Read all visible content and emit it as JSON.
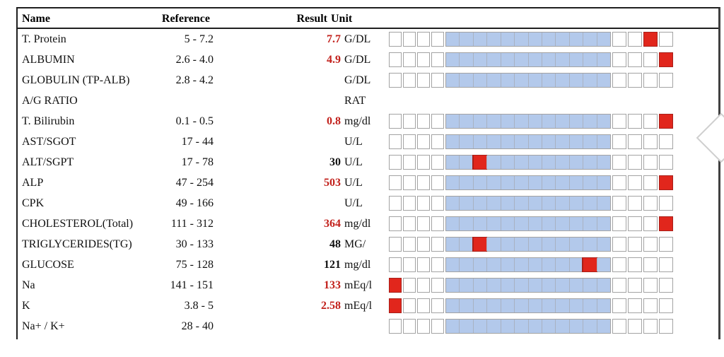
{
  "colors": {
    "bar_blue": "#b3c9eb",
    "bar_red": "#e1261c",
    "abnormal_text": "#c2211c",
    "frame_border": "#1f1f1f"
  },
  "table": {
    "columns": [
      {
        "label": "Name"
      },
      {
        "label": "Reference"
      },
      {
        "label": "Result"
      },
      {
        "label": "Unit"
      }
    ],
    "bar_layout": {
      "cells_total": 20,
      "left_white": 4,
      "blue_cells": 12,
      "right_white": 4
    },
    "rows": [
      {
        "name": "T. Protein",
        "reference": "5 - 7.2",
        "result": "7.7",
        "abnormal": true,
        "unit": "G/DL",
        "bar": true,
        "red_index": 18
      },
      {
        "name": "ALBUMIN",
        "reference": "2.6 - 4.0",
        "result": "4.9",
        "abnormal": true,
        "unit": "G/DL",
        "bar": true,
        "red_index": 19
      },
      {
        "name": "GLOBULIN (TP-ALB)",
        "reference": "2.8 - 4.2",
        "result": "",
        "abnormal": false,
        "unit": "G/DL",
        "bar": true,
        "red_index": null
      },
      {
        "name": "A/G RATIO",
        "reference": "",
        "result": "",
        "abnormal": false,
        "unit": "RAT",
        "bar": false,
        "red_index": null
      },
      {
        "name": "T. Bilirubin",
        "reference": "0.1 - 0.5",
        "result": "0.8",
        "abnormal": true,
        "unit": "mg/dl",
        "bar": true,
        "red_index": 19
      },
      {
        "name": "AST/SGOT",
        "reference": "17 - 44",
        "result": "",
        "abnormal": false,
        "unit": "U/L",
        "bar": true,
        "red_index": null
      },
      {
        "name": "ALT/SGPT",
        "reference": "17 - 78",
        "result": "30",
        "abnormal": false,
        "unit": "U/L",
        "bar": true,
        "red_index": 6
      },
      {
        "name": "ALP",
        "reference": "47 - 254",
        "result": "503",
        "abnormal": true,
        "unit": "U/L",
        "bar": true,
        "red_index": 19
      },
      {
        "name": "CPK",
        "reference": "49 - 166",
        "result": "",
        "abnormal": false,
        "unit": "U/L",
        "bar": true,
        "red_index": null
      },
      {
        "name": "CHOLESTEROL(Total)",
        "reference": "111 - 312",
        "result": "364",
        "abnormal": true,
        "unit": "mg/dl",
        "bar": true,
        "red_index": 19
      },
      {
        "name": "TRIGLYCERIDES(TG)",
        "reference": "30 - 133",
        "result": "48",
        "abnormal": false,
        "unit": "MG/",
        "bar": true,
        "red_index": 6
      },
      {
        "name": "GLUCOSE",
        "reference": "75 - 128",
        "result": "121",
        "abnormal": false,
        "unit": "mg/dl",
        "bar": true,
        "red_index": 14
      },
      {
        "name": "Na",
        "reference": "141 - 151",
        "result": "133",
        "abnormal": true,
        "unit": "mEq/l",
        "bar": true,
        "red_index": 0
      },
      {
        "name": "K",
        "reference": "3.8 - 5",
        "result": "2.58",
        "abnormal": true,
        "unit": "mEq/l",
        "bar": true,
        "red_index": 0
      },
      {
        "name": "Na+ / K+",
        "reference": "28 - 40",
        "result": "",
        "abnormal": false,
        "unit": "",
        "bar": true,
        "red_index": null
      }
    ]
  }
}
